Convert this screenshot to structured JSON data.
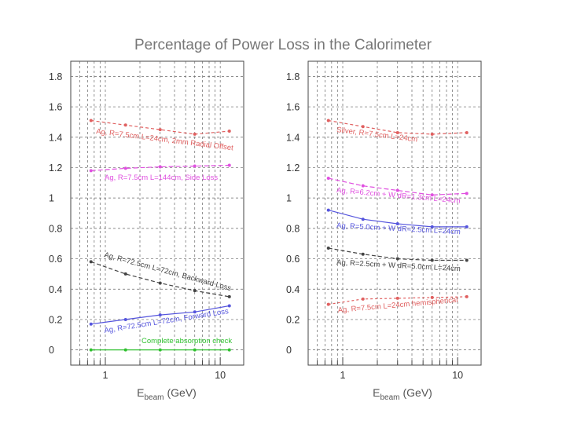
{
  "chart_data": [
    {
      "type": "line",
      "title": "Percentage of Power Loss in the Calorimeter",
      "xscale": "log",
      "xlim": [
        0.5,
        16
      ],
      "ylim": [
        -0.1,
        1.9
      ],
      "yticks": [
        "0",
        "0.2",
        "0.4",
        "0.6",
        "0.8",
        "1",
        "1.2",
        "1.4",
        "1.6",
        "1.8"
      ],
      "ytick_values": [
        0,
        0.2,
        0.4,
        0.6,
        0.8,
        1,
        1.2,
        1.4,
        1.6,
        1.8
      ],
      "xticks": [
        "1",
        "10"
      ],
      "xtick_values": [
        1,
        10
      ],
      "xlabel_main": "E",
      "xlabel_sub": "beam",
      "xlabel_unit": "(GeV)",
      "grid": true,
      "series": [
        {
          "name": "Ag, R=7.5cm L=24cm, 2mm Radial Offset",
          "color": "#e06060",
          "dash": "4,3",
          "x": [
            0.75,
            1.5,
            3,
            6,
            12
          ],
          "y": [
            1.51,
            1.48,
            1.45,
            1.42,
            1.44
          ]
        },
        {
          "name": "Ag, R=7.5cm L=144cm, Side Loss",
          "color": "#e050e0",
          "dash": "6,3",
          "x": [
            0.75,
            1.5,
            3,
            6,
            12
          ],
          "y": [
            1.18,
            1.195,
            1.205,
            1.21,
            1.215
          ]
        },
        {
          "name": "Ag, R=72.5cm L=72cm, Backward Loss",
          "color": "#444444",
          "dash": "5,3",
          "x": [
            0.75,
            1.5,
            3,
            6,
            12
          ],
          "y": [
            0.58,
            0.5,
            0.44,
            0.39,
            0.35
          ]
        },
        {
          "name": "Ag, R=72.5cm L=72cm, Forward Loss",
          "color": "#5555dd",
          "dash": "",
          "x": [
            0.75,
            1.5,
            3,
            6,
            12
          ],
          "y": [
            0.17,
            0.2,
            0.23,
            0.25,
            0.29
          ]
        },
        {
          "name": "Complete absorption check",
          "color": "#30c030",
          "dash": "",
          "x": [
            0.75,
            1.5,
            3,
            6,
            12
          ],
          "y": [
            0.0,
            0.0,
            0.0,
            0.0,
            0.0
          ]
        }
      ],
      "annotations": [
        {
          "text": "Ag, R=7.5cm L=24cm, 2mm Radial Offset",
          "color": "#e06060"
        },
        {
          "text": "Ag, R=7.5cm L=144cm, Side Loss",
          "color": "#e050e0"
        },
        {
          "text": "Ag, R=72.5cm L=72cm, Backward Loss",
          "color": "#444444"
        },
        {
          "text": "Ag, R=72.5cm L=72cm, Forward Loss",
          "color": "#5555dd"
        },
        {
          "text": "Complete absorption check",
          "color": "#30c030"
        }
      ]
    },
    {
      "type": "line",
      "xscale": "log",
      "xlim": [
        0.5,
        16
      ],
      "ylim": [
        -0.1,
        1.9
      ],
      "yticks": [
        "0",
        "0.2",
        "0.4",
        "0.6",
        "0.8",
        "1",
        "1.2",
        "1.4",
        "1.6",
        "1.8"
      ],
      "ytick_values": [
        0,
        0.2,
        0.4,
        0.6,
        0.8,
        1,
        1.2,
        1.4,
        1.6,
        1.8
      ],
      "xticks": [
        "1",
        "10"
      ],
      "xtick_values": [
        1,
        10
      ],
      "xlabel_main": "E",
      "xlabel_sub": "beam",
      "xlabel_unit": "(GeV)",
      "grid": true,
      "series": [
        {
          "name": "Silver, R=7.5cm L=24cm",
          "color": "#e06060",
          "dash": "4,3",
          "x": [
            0.75,
            1.5,
            3,
            6,
            12
          ],
          "y": [
            1.51,
            1.47,
            1.43,
            1.42,
            1.43
          ]
        },
        {
          "name": "Ag, R=6.2cm + W dR=1.3cm L=24cm",
          "color": "#e050e0",
          "dash": "6,3",
          "x": [
            0.75,
            1.5,
            3,
            6,
            12
          ],
          "y": [
            1.13,
            1.08,
            1.05,
            1.02,
            1.03
          ]
        },
        {
          "name": "Ag, R=5.0cm + W dR=2.5cm L=24cm",
          "color": "#5555dd",
          "dash": "",
          "x": [
            0.75,
            1.5,
            3,
            6,
            12
          ],
          "y": [
            0.92,
            0.86,
            0.83,
            0.81,
            0.81
          ]
        },
        {
          "name": "Ag, R=2.5cm + W dR=5.0cm L=24cm",
          "color": "#444444",
          "dash": "5,3",
          "x": [
            0.75,
            1.5,
            3,
            6,
            12
          ],
          "y": [
            0.67,
            0.63,
            0.6,
            0.59,
            0.59
          ]
        },
        {
          "name": "Ag, R=7.5cm L=24cm hemispherical",
          "color": "#e06060",
          "dash": "3,3",
          "x": [
            0.75,
            1.5,
            3,
            6,
            12
          ],
          "y": [
            0.3,
            0.335,
            0.34,
            0.345,
            0.35
          ]
        }
      ],
      "annotations": [
        {
          "text": "Silver, R=7.5cm L=24cm",
          "color": "#e06060"
        },
        {
          "text": "Ag, R=6.2cm + W dR=1.3cm L=24cm",
          "color": "#e050e0"
        },
        {
          "text": "Ag, R=5.0cm + W dR=2.5cm L=24cm",
          "color": "#5555dd"
        },
        {
          "text": "Ag, R=2.5cm + W dR=5.0cm L=24cm",
          "color": "#444444"
        },
        {
          "text": "Ag, R=7.5cm L=24cm hemispherical",
          "color": "#e06060"
        }
      ]
    }
  ]
}
